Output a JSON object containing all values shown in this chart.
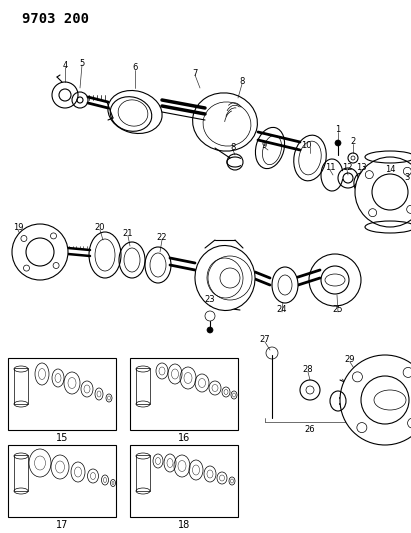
{
  "title": "9703 200",
  "background_color": "#ffffff",
  "fig_width": 4.11,
  "fig_height": 5.33,
  "dpi": 100,
  "title_fontsize": 10,
  "label_fontsize": 6.5
}
